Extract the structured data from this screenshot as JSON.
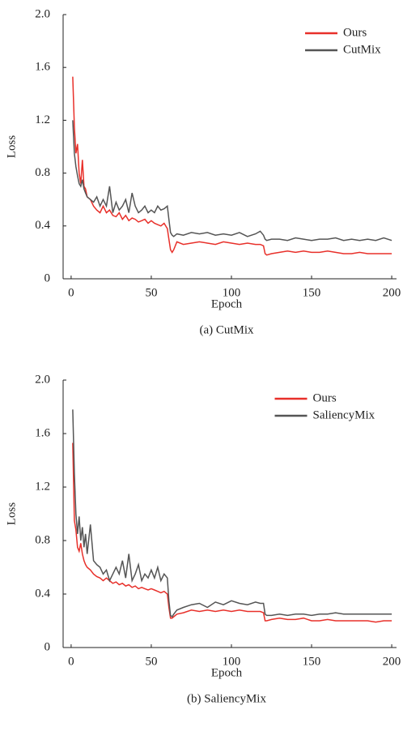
{
  "chart_data": [
    {
      "type": "line",
      "ylabel": "Loss",
      "xlabel": "Epoch",
      "caption": "(a) CutMix",
      "x": [
        1,
        2,
        3,
        4,
        5,
        6,
        7,
        8,
        9,
        10,
        12,
        14,
        16,
        18,
        20,
        22,
        24,
        26,
        28,
        30,
        32,
        34,
        36,
        38,
        40,
        42,
        44,
        46,
        48,
        50,
        52,
        54,
        56,
        58,
        60,
        61,
        62,
        63,
        64,
        66,
        70,
        75,
        80,
        85,
        90,
        95,
        100,
        105,
        110,
        115,
        118,
        120,
        121,
        122,
        125,
        130,
        135,
        140,
        145,
        150,
        155,
        160,
        165,
        170,
        175,
        180,
        185,
        190,
        195,
        200
      ],
      "series": [
        {
          "name": "Ours",
          "color": "#e8302a",
          "values": [
            1.53,
            1.15,
            0.95,
            1.02,
            0.8,
            0.72,
            0.9,
            0.7,
            0.68,
            0.62,
            0.6,
            0.55,
            0.52,
            0.5,
            0.55,
            0.5,
            0.52,
            0.48,
            0.47,
            0.5,
            0.45,
            0.48,
            0.44,
            0.46,
            0.45,
            0.43,
            0.44,
            0.45,
            0.42,
            0.44,
            0.42,
            0.41,
            0.4,
            0.42,
            0.38,
            0.3,
            0.22,
            0.2,
            0.22,
            0.28,
            0.26,
            0.27,
            0.28,
            0.27,
            0.26,
            0.28,
            0.27,
            0.26,
            0.27,
            0.26,
            0.26,
            0.25,
            0.19,
            0.18,
            0.19,
            0.2,
            0.21,
            0.2,
            0.21,
            0.2,
            0.2,
            0.21,
            0.2,
            0.19,
            0.19,
            0.2,
            0.19,
            0.19,
            0.19,
            0.19
          ]
        },
        {
          "name": "CutMix",
          "color": "#555555",
          "values": [
            1.2,
            0.95,
            0.85,
            0.78,
            0.72,
            0.7,
            0.75,
            0.68,
            0.65,
            0.62,
            0.6,
            0.58,
            0.62,
            0.55,
            0.6,
            0.55,
            0.7,
            0.5,
            0.58,
            0.52,
            0.55,
            0.6,
            0.5,
            0.65,
            0.55,
            0.5,
            0.52,
            0.55,
            0.5,
            0.52,
            0.5,
            0.55,
            0.52,
            0.53,
            0.55,
            0.45,
            0.35,
            0.33,
            0.32,
            0.34,
            0.33,
            0.35,
            0.34,
            0.35,
            0.33,
            0.34,
            0.33,
            0.35,
            0.32,
            0.34,
            0.36,
            0.33,
            0.3,
            0.29,
            0.3,
            0.3,
            0.29,
            0.31,
            0.3,
            0.29,
            0.3,
            0.3,
            0.31,
            0.29,
            0.3,
            0.29,
            0.3,
            0.29,
            0.31,
            0.29
          ]
        }
      ],
      "xlim": [
        -5,
        203
      ],
      "xticks": [
        0,
        50,
        100,
        150,
        200
      ],
      "ylim": [
        0,
        2
      ],
      "yticks": [
        0,
        0.4,
        0.8,
        1.2,
        1.6,
        {
          "value": 2,
          "label": "2.0"
        }
      ],
      "legend": "upper right"
    },
    {
      "type": "line",
      "ylabel": "Loss",
      "xlabel": "Epoch",
      "caption": "(b) SaliencyMix",
      "x": [
        1,
        2,
        3,
        4,
        5,
        6,
        7,
        8,
        9,
        10,
        12,
        14,
        16,
        18,
        20,
        22,
        24,
        26,
        28,
        30,
        32,
        34,
        36,
        38,
        40,
        42,
        44,
        46,
        48,
        50,
        52,
        54,
        56,
        58,
        60,
        61,
        62,
        63,
        64,
        66,
        70,
        75,
        80,
        85,
        90,
        95,
        100,
        105,
        110,
        115,
        118,
        120,
        121,
        122,
        125,
        130,
        135,
        140,
        145,
        150,
        155,
        160,
        165,
        170,
        175,
        180,
        185,
        190,
        195,
        200
      ],
      "series": [
        {
          "name": "Ours",
          "color": "#e8302a",
          "values": [
            1.53,
            0.95,
            0.88,
            0.75,
            0.72,
            0.78,
            0.7,
            0.65,
            0.62,
            0.6,
            0.58,
            0.55,
            0.53,
            0.52,
            0.5,
            0.52,
            0.5,
            0.48,
            0.49,
            0.47,
            0.48,
            0.46,
            0.47,
            0.45,
            0.46,
            0.44,
            0.45,
            0.44,
            0.43,
            0.44,
            0.43,
            0.42,
            0.41,
            0.42,
            0.4,
            0.3,
            0.22,
            0.22,
            0.23,
            0.25,
            0.26,
            0.28,
            0.27,
            0.28,
            0.27,
            0.28,
            0.27,
            0.28,
            0.27,
            0.27,
            0.27,
            0.26,
            0.2,
            0.2,
            0.21,
            0.22,
            0.21,
            0.21,
            0.22,
            0.2,
            0.2,
            0.21,
            0.2,
            0.2,
            0.2,
            0.2,
            0.2,
            0.19,
            0.2,
            0.2
          ]
        },
        {
          "name": "SaliencyMix",
          "color": "#555555",
          "values": [
            1.78,
            1.3,
            1.0,
            0.85,
            0.98,
            0.8,
            0.9,
            0.75,
            0.85,
            0.7,
            0.92,
            0.65,
            0.62,
            0.6,
            0.55,
            0.58,
            0.5,
            0.55,
            0.6,
            0.55,
            0.65,
            0.52,
            0.7,
            0.5,
            0.55,
            0.62,
            0.5,
            0.55,
            0.52,
            0.58,
            0.52,
            0.6,
            0.5,
            0.55,
            0.52,
            0.35,
            0.24,
            0.23,
            0.25,
            0.28,
            0.3,
            0.32,
            0.33,
            0.3,
            0.34,
            0.32,
            0.35,
            0.33,
            0.32,
            0.34,
            0.33,
            0.33,
            0.25,
            0.24,
            0.24,
            0.25,
            0.24,
            0.25,
            0.25,
            0.24,
            0.25,
            0.25,
            0.26,
            0.25,
            0.25,
            0.25,
            0.25,
            0.25,
            0.25,
            0.25
          ]
        }
      ],
      "xlim": [
        -5,
        203
      ],
      "xticks": [
        0,
        50,
        100,
        150,
        200
      ],
      "ylim": [
        0,
        2
      ],
      "yticks": [
        0,
        0.4,
        0.8,
        1.2,
        1.6,
        {
          "value": 2,
          "label": "2.0"
        }
      ],
      "legend": "upper right"
    }
  ]
}
